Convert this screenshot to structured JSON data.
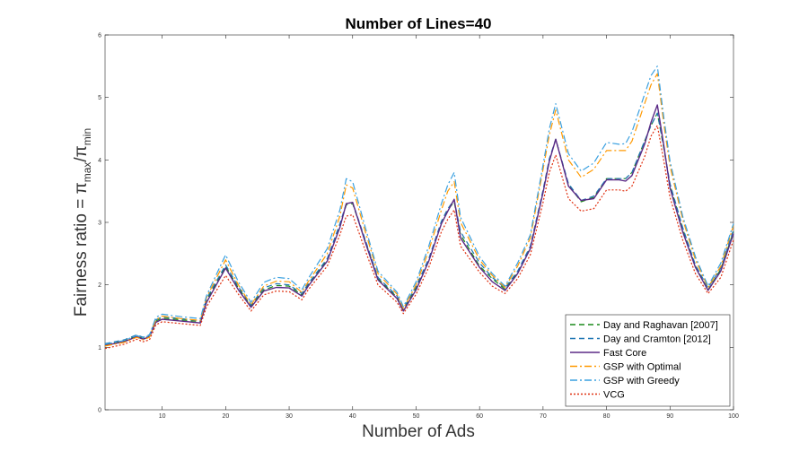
{
  "chart_data": {
    "type": "line",
    "title": "Number of Lines=40",
    "xlabel": "Number of Ads",
    "ylabel": {
      "prefix": "Fairness ratio = π",
      "sub1": "max",
      "mid": "/π",
      "sub2": "min"
    },
    "xlim": [
      1,
      100
    ],
    "ylim": [
      0,
      6
    ],
    "xticks": [
      "10",
      "20",
      "30",
      "40",
      "50",
      "60",
      "70",
      "80",
      "90",
      "100"
    ],
    "yticks": [
      "0",
      "1",
      "2",
      "3",
      "4",
      "5",
      "6"
    ],
    "legend_position": "bottom-right",
    "x": [
      1,
      4,
      6,
      7,
      8,
      9,
      10,
      13,
      16,
      17,
      20,
      22,
      24,
      26,
      28,
      30,
      32,
      33,
      36,
      38,
      39,
      40,
      42,
      44,
      47,
      48,
      50,
      52,
      54,
      55,
      56,
      57,
      60,
      62,
      64,
      66,
      68,
      70,
      71,
      72,
      74,
      76,
      78,
      80,
      82,
      83,
      84,
      86,
      87,
      88,
      89,
      90,
      92,
      94,
      96,
      98,
      100
    ],
    "series": [
      {
        "name": "Day and Raghavan [2007]",
        "color": "#1a8a1a",
        "dash": "6,4",
        "values": [
          1.04,
          1.1,
          1.18,
          1.14,
          1.18,
          1.42,
          1.47,
          1.44,
          1.41,
          1.75,
          2.3,
          1.95,
          1.66,
          1.92,
          1.99,
          1.98,
          1.84,
          2.0,
          2.4,
          2.95,
          3.28,
          3.3,
          2.7,
          2.1,
          1.8,
          1.6,
          1.95,
          2.4,
          3.0,
          3.2,
          3.33,
          2.8,
          2.3,
          2.1,
          1.93,
          2.2,
          2.6,
          3.5,
          4.0,
          4.33,
          3.6,
          3.33,
          3.4,
          3.7,
          3.7,
          3.7,
          3.8,
          4.3,
          4.55,
          4.75,
          4.2,
          3.6,
          2.9,
          2.3,
          1.92,
          2.25,
          2.85
        ]
      },
      {
        "name": "Day and Cramton [2012]",
        "color": "#1f77b4",
        "dash": "6,4",
        "values": [
          1.06,
          1.12,
          1.2,
          1.16,
          1.2,
          1.44,
          1.49,
          1.46,
          1.42,
          1.78,
          2.32,
          1.97,
          1.68,
          1.95,
          2.02,
          2.0,
          1.86,
          2.02,
          2.42,
          2.98,
          3.3,
          3.32,
          2.72,
          2.12,
          1.82,
          1.62,
          1.98,
          2.42,
          3.02,
          3.22,
          3.36,
          2.85,
          2.35,
          2.12,
          1.95,
          2.22,
          2.62,
          3.52,
          4.02,
          4.33,
          3.62,
          3.35,
          3.42,
          3.7,
          3.7,
          3.7,
          3.8,
          4.3,
          4.55,
          4.75,
          4.22,
          3.62,
          2.92,
          2.32,
          1.95,
          2.27,
          2.88
        ]
      },
      {
        "name": "Fast Core",
        "color": "#5b2a86",
        "dash": "",
        "values": [
          1.03,
          1.09,
          1.17,
          1.13,
          1.17,
          1.4,
          1.45,
          1.42,
          1.39,
          1.72,
          2.27,
          1.92,
          1.64,
          1.9,
          1.96,
          1.95,
          1.82,
          1.98,
          2.38,
          2.92,
          3.3,
          3.32,
          2.68,
          2.08,
          1.78,
          1.58,
          1.92,
          2.38,
          2.98,
          3.18,
          3.37,
          2.75,
          2.28,
          2.05,
          1.91,
          2.18,
          2.58,
          3.48,
          3.98,
          4.33,
          3.58,
          3.35,
          3.38,
          3.68,
          3.68,
          3.66,
          3.75,
          4.25,
          4.6,
          4.88,
          4.25,
          3.55,
          2.85,
          2.28,
          1.91,
          2.22,
          2.82
        ]
      },
      {
        "name": "GSP with Optimal",
        "color": "#ff9900",
        "dash": "8,3,2,3",
        "values": [
          1.02,
          1.08,
          1.16,
          1.12,
          1.16,
          1.44,
          1.5,
          1.46,
          1.43,
          1.8,
          2.4,
          2.0,
          1.68,
          1.98,
          2.06,
          2.05,
          1.88,
          2.05,
          2.5,
          3.1,
          3.6,
          3.55,
          2.85,
          2.18,
          1.85,
          1.62,
          2.0,
          2.55,
          3.2,
          3.5,
          3.65,
          3.0,
          2.4,
          2.15,
          1.96,
          2.3,
          2.75,
          3.85,
          4.4,
          4.8,
          4.0,
          3.72,
          3.85,
          4.15,
          4.15,
          4.15,
          4.3,
          4.9,
          5.2,
          5.38,
          4.6,
          3.9,
          3.05,
          2.4,
          1.96,
          2.3,
          2.95
        ]
      },
      {
        "name": "GSP with Greedy",
        "color": "#3aa0e0",
        "dash": "8,3,2,3",
        "values": [
          1.05,
          1.11,
          1.19,
          1.15,
          1.19,
          1.48,
          1.53,
          1.49,
          1.46,
          1.83,
          2.48,
          2.05,
          1.72,
          2.04,
          2.12,
          2.1,
          1.92,
          2.1,
          2.58,
          3.2,
          3.7,
          3.65,
          2.92,
          2.22,
          1.88,
          1.65,
          2.05,
          2.62,
          3.3,
          3.6,
          3.8,
          3.08,
          2.45,
          2.18,
          1.98,
          2.35,
          2.8,
          3.92,
          4.5,
          4.9,
          4.1,
          3.82,
          3.95,
          4.28,
          4.25,
          4.26,
          4.45,
          5.05,
          5.35,
          5.5,
          4.7,
          3.98,
          3.1,
          2.45,
          1.98,
          2.35,
          2.98
        ]
      },
      {
        "name": "VCG",
        "color": "#e03010",
        "dash": "2,2",
        "values": [
          0.98,
          1.05,
          1.13,
          1.09,
          1.12,
          1.36,
          1.41,
          1.38,
          1.35,
          1.65,
          2.15,
          1.85,
          1.58,
          1.84,
          1.9,
          1.89,
          1.76,
          1.92,
          2.3,
          2.8,
          3.1,
          3.12,
          2.55,
          2.0,
          1.72,
          1.54,
          1.85,
          2.28,
          2.85,
          3.05,
          3.2,
          2.62,
          2.2,
          1.98,
          1.86,
          2.1,
          2.48,
          3.32,
          3.8,
          4.08,
          3.38,
          3.18,
          3.22,
          3.52,
          3.52,
          3.5,
          3.58,
          4.05,
          4.38,
          4.55,
          4.0,
          3.4,
          2.72,
          2.18,
          1.86,
          2.12,
          2.72
        ]
      }
    ]
  }
}
